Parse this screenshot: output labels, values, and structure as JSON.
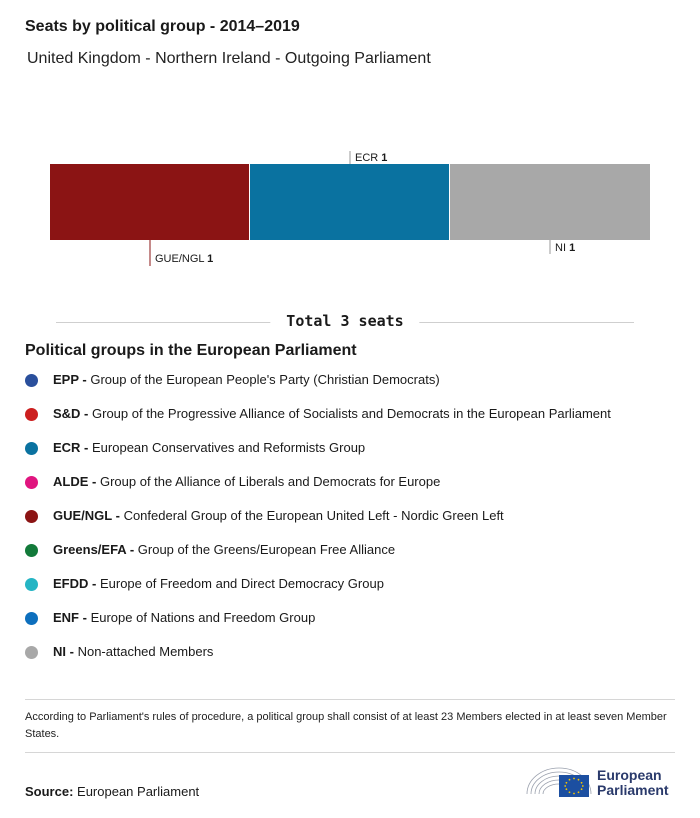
{
  "title": "Seats by political group - 2014–2019",
  "subtitle": "United Kingdom - Northern Ireland - Outgoing Parliament",
  "chart_data": {
    "type": "bar",
    "categories": [
      "GUE/NGL",
      "ECR",
      "NI"
    ],
    "values": [
      1,
      1,
      1
    ],
    "colors": [
      "#8b1414",
      "#0a72a0",
      "#a8a8a8"
    ],
    "label_positions": [
      "below",
      "above",
      "below"
    ]
  },
  "total_label": "Total 3 seats",
  "legend": {
    "title": "Political groups in the European Parliament",
    "items": [
      {
        "abbr": "EPP -",
        "name": "Group of the European People's Party (Christian Democrats)",
        "color": "#2a4f9c"
      },
      {
        "abbr": "S&D -",
        "name": "Group of the Progressive Alliance of Socialists and Democrats in the European Parliament",
        "color": "#cc1f1f"
      },
      {
        "abbr": "ECR -",
        "name": "European Conservatives and Reformists Group",
        "color": "#0a72a0"
      },
      {
        "abbr": "ALDE -",
        "name": "Group of the Alliance of Liberals and Democrats for Europe",
        "color": "#e0157f"
      },
      {
        "abbr": "GUE/NGL -",
        "name": "Confederal Group of the European United Left - Nordic Green Left",
        "color": "#8b1414"
      },
      {
        "abbr": "Greens/EFA -",
        "name": "Group of the Greens/European Free Alliance",
        "color": "#127a3a"
      },
      {
        "abbr": "EFDD -",
        "name": "Europe of Freedom and Direct Democracy Group",
        "color": "#25b5c4"
      },
      {
        "abbr": "ENF -",
        "name": "Europe of Nations and Freedom Group",
        "color": "#0d6fbd"
      },
      {
        "abbr": "NI -",
        "name": "Non-attached Members",
        "color": "#a8a8a8"
      }
    ]
  },
  "note": "According to Parliament's rules of procedure, a political group shall consist of at least 23 Members elected in at least seven Member States.",
  "source": {
    "label": "Source:",
    "value": "European Parliament"
  },
  "logo": {
    "line1": "European",
    "line2": "Parliament"
  }
}
